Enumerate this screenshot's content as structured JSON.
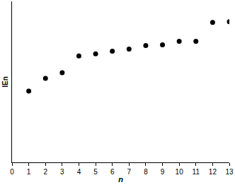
{
  "chart_data": {
    "type": "scatter",
    "x_label": "n",
    "y_label": "IEn",
    "x": [
      1,
      2,
      3,
      4,
      5,
      6,
      7,
      8,
      9,
      10,
      11,
      12,
      13
    ],
    "values": [
      102,
      120,
      128,
      152,
      155,
      159,
      162,
      167,
      168,
      173,
      173,
      200,
      201
    ],
    "color": "#000000",
    "marker": "circle",
    "xlim": [
      0,
      13
    ],
    "xticks": [
      0,
      1,
      2,
      3,
      4,
      5,
      6,
      7,
      8,
      9,
      10,
      11,
      12,
      13
    ],
    "ylim": [
      0,
      230
    ],
    "yticks": [],
    "tick_labels": "x",
    "grid": false
  }
}
